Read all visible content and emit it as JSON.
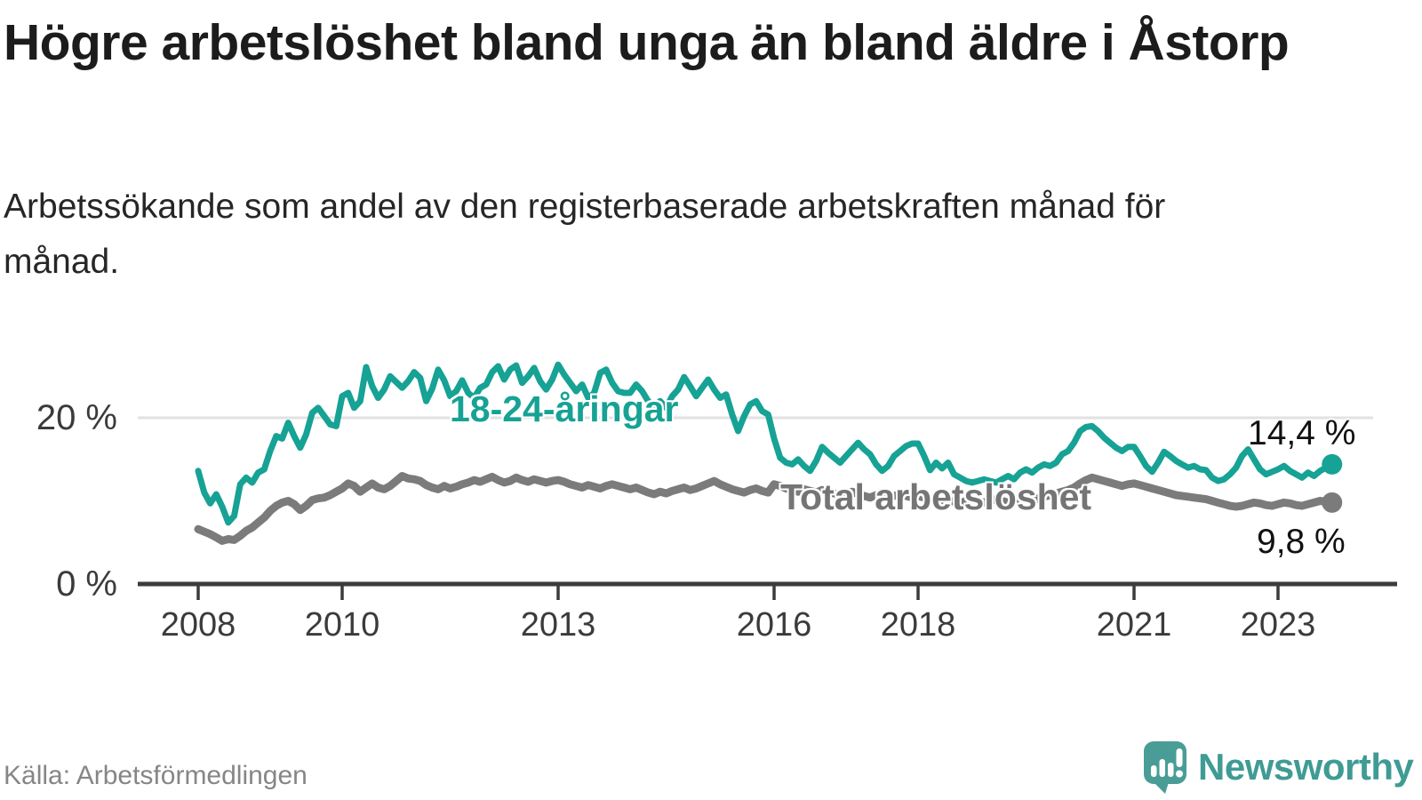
{
  "header": {
    "title": "Högre arbetslöshet bland unga än bland äldre i Åstorp",
    "subtitle": "Arbetssökande som andel av den registerbaserade arbetskraften månad för månad."
  },
  "footer": {
    "source": "Källa: Arbetsförmedlingen",
    "brand": "Newsworthy",
    "brand_color": "#3f9b94"
  },
  "chart_data": {
    "type": "line",
    "title": "Högre arbetslöshet bland unga än bland äldre i Åstorp",
    "unit": "%",
    "frequency": "monthly",
    "start_year": 2008,
    "end_point": "2023-10",
    "ylim": [
      0,
      28
    ],
    "grid": "y-at-20-only",
    "legend_position": "inline-labels",
    "y_ticks": [
      {
        "label": "20 %",
        "value": 20
      },
      {
        "label": "0 %",
        "value": 0
      }
    ],
    "x_ticks": [
      {
        "label": "2008",
        "year": 2008
      },
      {
        "label": "2010",
        "year": 2010
      },
      {
        "label": "2013",
        "year": 2013
      },
      {
        "label": "2016",
        "year": 2016
      },
      {
        "label": "2018",
        "year": 2018
      },
      {
        "label": "2021",
        "year": 2021
      },
      {
        "label": "2023",
        "year": 2023
      }
    ],
    "series": [
      {
        "name": "18-24-åringar",
        "color": "#16a294",
        "end_label": "14,4 %",
        "end_value": 14.4,
        "values": [
          13.6,
          11.0,
          9.7,
          10.8,
          9.3,
          7.4,
          8.2,
          12.0,
          12.8,
          12.2,
          13.4,
          13.8,
          16.0,
          17.8,
          17.5,
          19.4,
          17.8,
          16.4,
          18.0,
          20.6,
          21.2,
          20.2,
          19.2,
          19.0,
          22.6,
          23.0,
          21.2,
          22.0,
          26.1,
          23.8,
          22.4,
          23.4,
          25.0,
          24.3,
          23.6,
          24.4,
          25.5,
          24.8,
          22.0,
          23.5,
          25.8,
          24.5,
          22.6,
          23.2,
          24.5,
          23.0,
          22.4,
          23.6,
          24.0,
          25.5,
          26.2,
          24.6,
          25.8,
          26.3,
          24.2,
          25.0,
          26.0,
          24.4,
          23.4,
          24.6,
          26.4,
          25.2,
          24.2,
          23.2,
          24.0,
          22.4,
          23.0,
          25.4,
          25.8,
          24.2,
          23.2,
          23.0,
          23.0,
          24.0,
          23.2,
          22.0,
          21.4,
          22.0,
          21.2,
          22.6,
          23.4,
          24.9,
          23.8,
          22.6,
          23.6,
          24.6,
          23.4,
          22.4,
          22.8,
          20.4,
          18.4,
          20.2,
          21.6,
          22.0,
          20.8,
          20.4,
          17.5,
          15.2,
          14.6,
          14.4,
          15.0,
          14.2,
          13.6,
          14.8,
          16.5,
          15.8,
          15.2,
          14.6,
          15.4,
          16.2,
          17.0,
          16.2,
          15.6,
          14.4,
          13.6,
          14.2,
          15.4,
          16.0,
          16.6,
          16.9,
          16.9,
          15.4,
          13.7,
          14.6,
          13.9,
          14.6,
          13.2,
          12.8,
          12.4,
          12.2,
          12.4,
          12.6,
          12.4,
          12.2,
          12.6,
          13.0,
          12.6,
          13.4,
          13.8,
          13.4,
          14.0,
          14.4,
          14.2,
          14.6,
          15.6,
          16.0,
          17.0,
          18.4,
          18.9,
          19.0,
          18.4,
          17.6,
          17.0,
          16.4,
          16.0,
          16.5,
          16.5,
          15.4,
          14.2,
          13.5,
          14.6,
          15.9,
          15.4,
          14.8,
          14.4,
          14.0,
          14.2,
          13.8,
          13.7,
          12.8,
          12.4,
          12.6,
          13.2,
          14.0,
          15.4,
          16.2,
          15.0,
          13.8,
          13.2,
          13.5,
          13.8,
          14.2,
          13.6,
          13.2,
          12.8,
          13.4,
          13.0,
          13.6,
          14.0,
          14.4
        ]
      },
      {
        "name": "Total arbetslöshet",
        "color": "#7b7b7b",
        "end_label": "9,8 %",
        "end_value": 9.8,
        "values": [
          6.6,
          6.3,
          6.0,
          5.6,
          5.2,
          5.4,
          5.3,
          5.8,
          6.4,
          6.8,
          7.4,
          8.0,
          8.8,
          9.4,
          9.8,
          10.0,
          9.6,
          8.9,
          9.4,
          10.1,
          10.3,
          10.4,
          10.7,
          11.1,
          11.5,
          12.1,
          11.8,
          11.1,
          11.6,
          12.1,
          11.6,
          11.4,
          11.8,
          12.4,
          13.0,
          12.7,
          12.6,
          12.4,
          11.9,
          11.6,
          11.4,
          11.8,
          11.5,
          11.7,
          12.0,
          12.2,
          12.5,
          12.3,
          12.6,
          12.9,
          12.5,
          12.2,
          12.4,
          12.8,
          12.5,
          12.3,
          12.6,
          12.4,
          12.2,
          12.4,
          12.5,
          12.3,
          12.0,
          11.8,
          11.6,
          11.9,
          11.7,
          11.5,
          11.8,
          12.0,
          11.8,
          11.6,
          11.4,
          11.6,
          11.3,
          11.0,
          10.8,
          11.1,
          10.9,
          11.2,
          11.4,
          11.6,
          11.3,
          11.5,
          11.8,
          12.1,
          12.4,
          12.0,
          11.7,
          11.4,
          11.2,
          11.0,
          11.3,
          11.5,
          11.2,
          11.0,
          12.0,
          11.8,
          11.5,
          11.3,
          11.1,
          11.4,
          11.2,
          11.0,
          11.3,
          11.1,
          10.9,
          10.7,
          10.9,
          11.1,
          10.8,
          10.6,
          10.4,
          10.7,
          10.5,
          10.3,
          10.6,
          10.8,
          10.6,
          10.4,
          10.6,
          10.4,
          10.2,
          10.0,
          9.8,
          10.1,
          9.9,
          9.7,
          10.0,
          10.2,
          10.0,
          9.8,
          10.0,
          10.2,
          10.0,
          9.8,
          10.1,
          10.4,
          10.2,
          10.0,
          10.3,
          10.5,
          10.7,
          10.9,
          11.1,
          11.3,
          11.6,
          12.1,
          12.5,
          12.8,
          12.6,
          12.4,
          12.2,
          12.0,
          11.8,
          12.0,
          12.1,
          11.9,
          11.7,
          11.5,
          11.3,
          11.1,
          10.9,
          10.7,
          10.6,
          10.5,
          10.4,
          10.3,
          10.2,
          10.0,
          9.8,
          9.6,
          9.4,
          9.3,
          9.4,
          9.6,
          9.8,
          9.7,
          9.5,
          9.4,
          9.6,
          9.8,
          9.7,
          9.5,
          9.4,
          9.6,
          9.8,
          10.0,
          9.9,
          9.8
        ]
      }
    ]
  }
}
